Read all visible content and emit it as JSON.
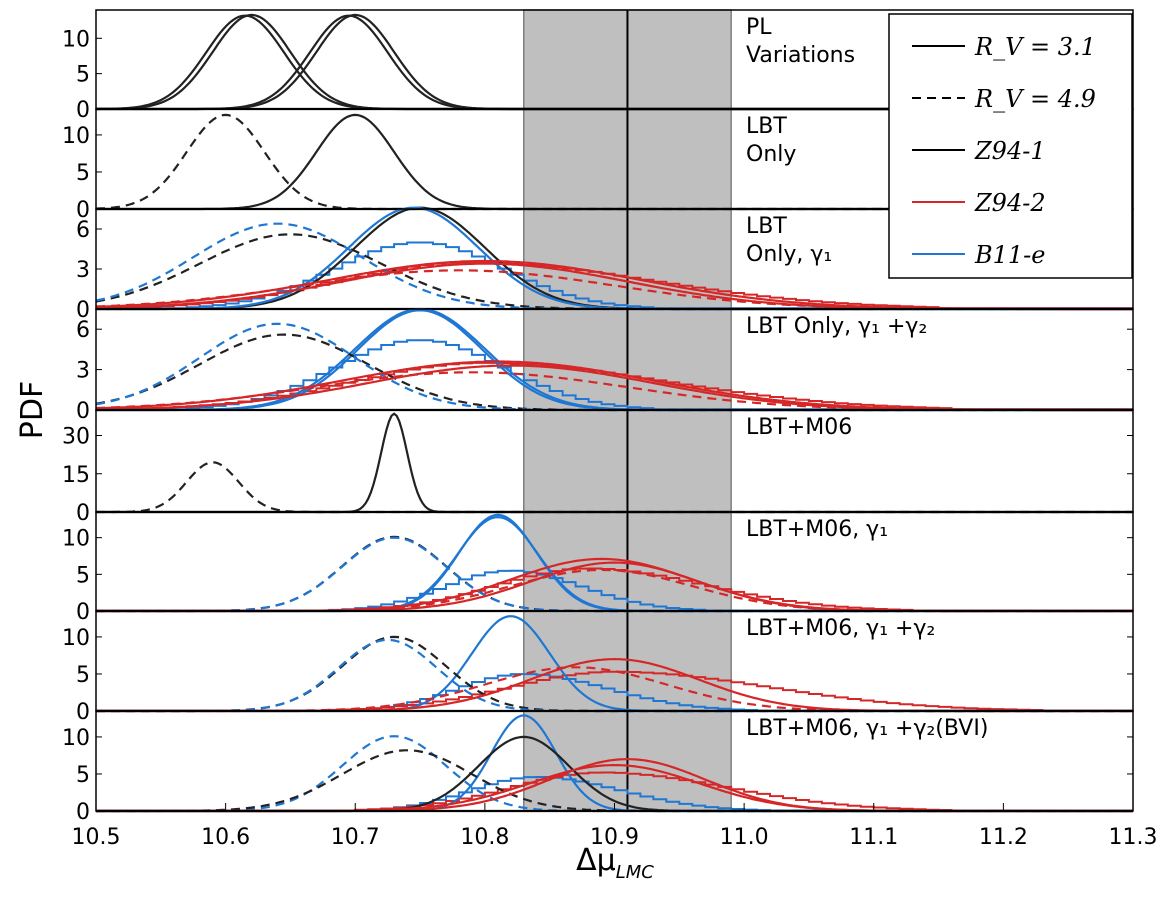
{
  "chart_data": {
    "type": "line",
    "xlabel": "Δμ",
    "xlabel_sub": "LMC",
    "ylabel": "PDF",
    "xlim": [
      10.5,
      11.3
    ],
    "x_ticks": [
      "10.5",
      "10.6",
      "10.7",
      "10.8",
      "10.9",
      "11.0",
      "11.1",
      "11.2",
      "11.3"
    ],
    "shaded_band": [
      10.83,
      10.99
    ],
    "reference_line": 10.91,
    "legend": {
      "position": "top-right",
      "entries": [
        {
          "label": "R_V = 3.1",
          "style": "solid",
          "color": "#000000"
        },
        {
          "label": "R_V = 4.9",
          "style": "dashed",
          "color": "#000000"
        },
        {
          "label": "Z94-1",
          "style": "solid",
          "color": "#000000"
        },
        {
          "label": "Z94-2",
          "style": "solid",
          "color": "#d62728"
        },
        {
          "label": "B11-e",
          "style": "solid",
          "color": "#1f77d4"
        }
      ]
    },
    "panels": [
      {
        "title": [
          "PL",
          "Variations"
        ],
        "ylim": [
          0,
          14
        ],
        "yticks": [
          "0",
          "5",
          "10"
        ],
        "curves": [
          {
            "family": "Z94-1",
            "style": "solid",
            "mean": 10.615,
            "sigma": 0.03,
            "peak": 13.2
          },
          {
            "family": "Z94-1",
            "style": "solid",
            "mean": 10.62,
            "sigma": 0.03,
            "peak": 13.3
          },
          {
            "family": "Z94-1",
            "style": "solid",
            "mean": 10.695,
            "sigma": 0.03,
            "peak": 13.2
          },
          {
            "family": "Z94-1",
            "style": "solid",
            "mean": 10.7,
            "sigma": 0.03,
            "peak": 13.3
          }
        ],
        "histograms": []
      },
      {
        "title": [
          "LBT",
          "Only"
        ],
        "ylim": [
          0,
          13.5
        ],
        "yticks": [
          "0",
          "5",
          "10"
        ],
        "curves": [
          {
            "family": "Z94-1",
            "style": "dashed",
            "mean": 10.6,
            "sigma": 0.03,
            "peak": 12.7
          },
          {
            "family": "Z94-1",
            "style": "solid",
            "mean": 10.7,
            "sigma": 0.03,
            "peak": 12.7
          }
        ],
        "histograms": []
      },
      {
        "title": [
          "LBT",
          "Only, γ₁"
        ],
        "ylim": [
          0,
          7.5
        ],
        "yticks": [
          "0",
          "3",
          "6"
        ],
        "curves": [
          {
            "family": "Z94-1",
            "style": "solid",
            "mean": 10.75,
            "sigma": 0.05,
            "peak": 7.6
          },
          {
            "family": "B11-e",
            "style": "solid",
            "mean": 10.745,
            "sigma": 0.05,
            "peak": 7.6
          },
          {
            "family": "Z94-1",
            "style": "dashed",
            "mean": 10.65,
            "sigma": 0.07,
            "peak": 5.6
          },
          {
            "family": "B11-e",
            "style": "dashed",
            "mean": 10.64,
            "sigma": 0.065,
            "peak": 6.4
          },
          {
            "family": "Z94-2",
            "style": "solid",
            "mean": 10.8,
            "sigma": 0.12,
            "peak": 3.6
          },
          {
            "family": "Z94-2",
            "style": "solid",
            "mean": 10.8,
            "sigma": 0.11,
            "peak": 3.4
          },
          {
            "family": "Z94-2",
            "style": "dashed",
            "mean": 10.78,
            "sigma": 0.12,
            "peak": 2.9
          }
        ],
        "histograms": [
          {
            "family": "B11-e",
            "mean": 10.75,
            "sigma": 0.065,
            "peak": 5.0,
            "skew": 1.0
          },
          {
            "family": "Z94-2",
            "mean": 10.79,
            "sigma": 0.1,
            "peak": 3.5,
            "skew": 1.4
          }
        ]
      },
      {
        "title": [
          "LBT Only, γ₁ +γ₂"
        ],
        "ylim": [
          0,
          7.5
        ],
        "yticks": [
          "0",
          "3",
          "6"
        ],
        "curves": [
          {
            "family": "B11-e",
            "style": "solid",
            "mean": 10.75,
            "sigma": 0.05,
            "peak": 7.5
          },
          {
            "family": "B11-e",
            "style": "solid",
            "mean": 10.75,
            "sigma": 0.048,
            "peak": 7.4
          },
          {
            "family": "Z94-1",
            "style": "dashed",
            "mean": 10.645,
            "sigma": 0.065,
            "peak": 5.6
          },
          {
            "family": "B11-e",
            "style": "dashed",
            "mean": 10.64,
            "sigma": 0.06,
            "peak": 6.4
          },
          {
            "family": "Z94-2",
            "style": "solid",
            "mean": 10.81,
            "sigma": 0.12,
            "peak": 3.6
          },
          {
            "family": "Z94-2",
            "style": "solid",
            "mean": 10.82,
            "sigma": 0.11,
            "peak": 3.3
          },
          {
            "family": "Z94-2",
            "style": "dashed",
            "mean": 10.79,
            "sigma": 0.12,
            "peak": 2.8
          }
        ],
        "histograms": [
          {
            "family": "B11-e",
            "mean": 10.75,
            "sigma": 0.065,
            "peak": 5.2,
            "skew": 1.0
          },
          {
            "family": "Z94-2",
            "mean": 10.8,
            "sigma": 0.1,
            "peak": 3.5,
            "skew": 1.4
          }
        ]
      },
      {
        "title": [
          "LBT+M06"
        ],
        "ylim": [
          0,
          40
        ],
        "yticks": [
          "0",
          "15",
          "30"
        ],
        "curves": [
          {
            "family": "Z94-1",
            "style": "dashed",
            "mean": 10.59,
            "sigma": 0.02,
            "peak": 19.5
          },
          {
            "family": "Z94-1",
            "style": "solid",
            "mean": 10.73,
            "sigma": 0.01,
            "peak": 38.5
          }
        ],
        "histograms": []
      },
      {
        "title": [
          "LBT+M06, γ₁"
        ],
        "ylim": [
          0,
          13.5
        ],
        "yticks": [
          "0",
          "5",
          "10"
        ],
        "curves": [
          {
            "family": "B11-e",
            "style": "solid",
            "mean": 10.81,
            "sigma": 0.03,
            "peak": 13.1
          },
          {
            "family": "B11-e",
            "style": "solid",
            "mean": 10.81,
            "sigma": 0.031,
            "peak": 12.8
          },
          {
            "family": "Z94-1",
            "style": "dashed",
            "mean": 10.73,
            "sigma": 0.04,
            "peak": 10.1
          },
          {
            "family": "B11-e",
            "style": "dashed",
            "mean": 10.73,
            "sigma": 0.04,
            "peak": 10.0
          },
          {
            "family": "Z94-2",
            "style": "solid",
            "mean": 10.89,
            "sigma": 0.07,
            "peak": 7.1
          },
          {
            "family": "Z94-2",
            "style": "solid",
            "mean": 10.9,
            "sigma": 0.065,
            "peak": 6.6
          },
          {
            "family": "Z94-2",
            "style": "dashed",
            "mean": 10.89,
            "sigma": 0.07,
            "peak": 5.6
          }
        ],
        "histograms": [
          {
            "family": "B11-e",
            "mean": 10.82,
            "sigma": 0.05,
            "peak": 5.5,
            "skew": 1.1
          },
          {
            "family": "Z94-2",
            "mean": 10.88,
            "sigma": 0.07,
            "peak": 5.8,
            "skew": 1.3
          }
        ]
      },
      {
        "title": [
          "LBT+M06, γ₁ +γ₂"
        ],
        "ylim": [
          0,
          13.5
        ],
        "yticks": [
          "0",
          "5",
          "10"
        ],
        "curves": [
          {
            "family": "B11-e",
            "style": "solid",
            "mean": 10.82,
            "sigma": 0.03,
            "peak": 12.8
          },
          {
            "family": "Z94-1",
            "style": "dashed",
            "mean": 10.73,
            "sigma": 0.04,
            "peak": 10.0
          },
          {
            "family": "B11-e",
            "style": "dashed",
            "mean": 10.725,
            "sigma": 0.038,
            "peak": 9.6
          },
          {
            "family": "Z94-2",
            "style": "solid",
            "mean": 10.9,
            "sigma": 0.065,
            "peak": 7.0
          },
          {
            "family": "Z94-2",
            "style": "dashed",
            "mean": 10.87,
            "sigma": 0.07,
            "peak": 5.9
          }
        ],
        "histograms": [
          {
            "family": "B11-e",
            "mean": 10.83,
            "sigma": 0.05,
            "peak": 5.0,
            "skew": 1.3
          },
          {
            "family": "Z94-2",
            "mean": 10.9,
            "sigma": 0.08,
            "peak": 5.3,
            "skew": 1.5
          }
        ]
      },
      {
        "title": [
          "LBT+M06, γ₁ +γ₂(BVI)"
        ],
        "ylim": [
          0,
          13.5
        ],
        "yticks": [
          "0",
          "5",
          "10"
        ],
        "curves": [
          {
            "family": "B11-e",
            "style": "solid",
            "mean": 10.83,
            "sigma": 0.025,
            "peak": 12.9
          },
          {
            "family": "Z94-1",
            "style": "solid",
            "mean": 10.83,
            "sigma": 0.035,
            "peak": 10.0
          },
          {
            "family": "B11-e",
            "style": "dashed",
            "mean": 10.73,
            "sigma": 0.04,
            "peak": 10.1
          },
          {
            "family": "Z94-1",
            "style": "dashed",
            "mean": 10.74,
            "sigma": 0.05,
            "peak": 8.2
          },
          {
            "family": "Z94-2",
            "style": "solid",
            "mean": 10.91,
            "sigma": 0.06,
            "peak": 7.0
          },
          {
            "family": "Z94-2",
            "style": "solid",
            "mean": 10.9,
            "sigma": 0.065,
            "peak": 6.2
          }
        ],
        "histograms": [
          {
            "family": "B11-e",
            "mean": 10.84,
            "sigma": 0.05,
            "peak": 4.6,
            "skew": 1.3
          },
          {
            "family": "Z94-2",
            "mean": 10.89,
            "sigma": 0.07,
            "peak": 5.2,
            "skew": 1.4
          }
        ]
      }
    ]
  }
}
